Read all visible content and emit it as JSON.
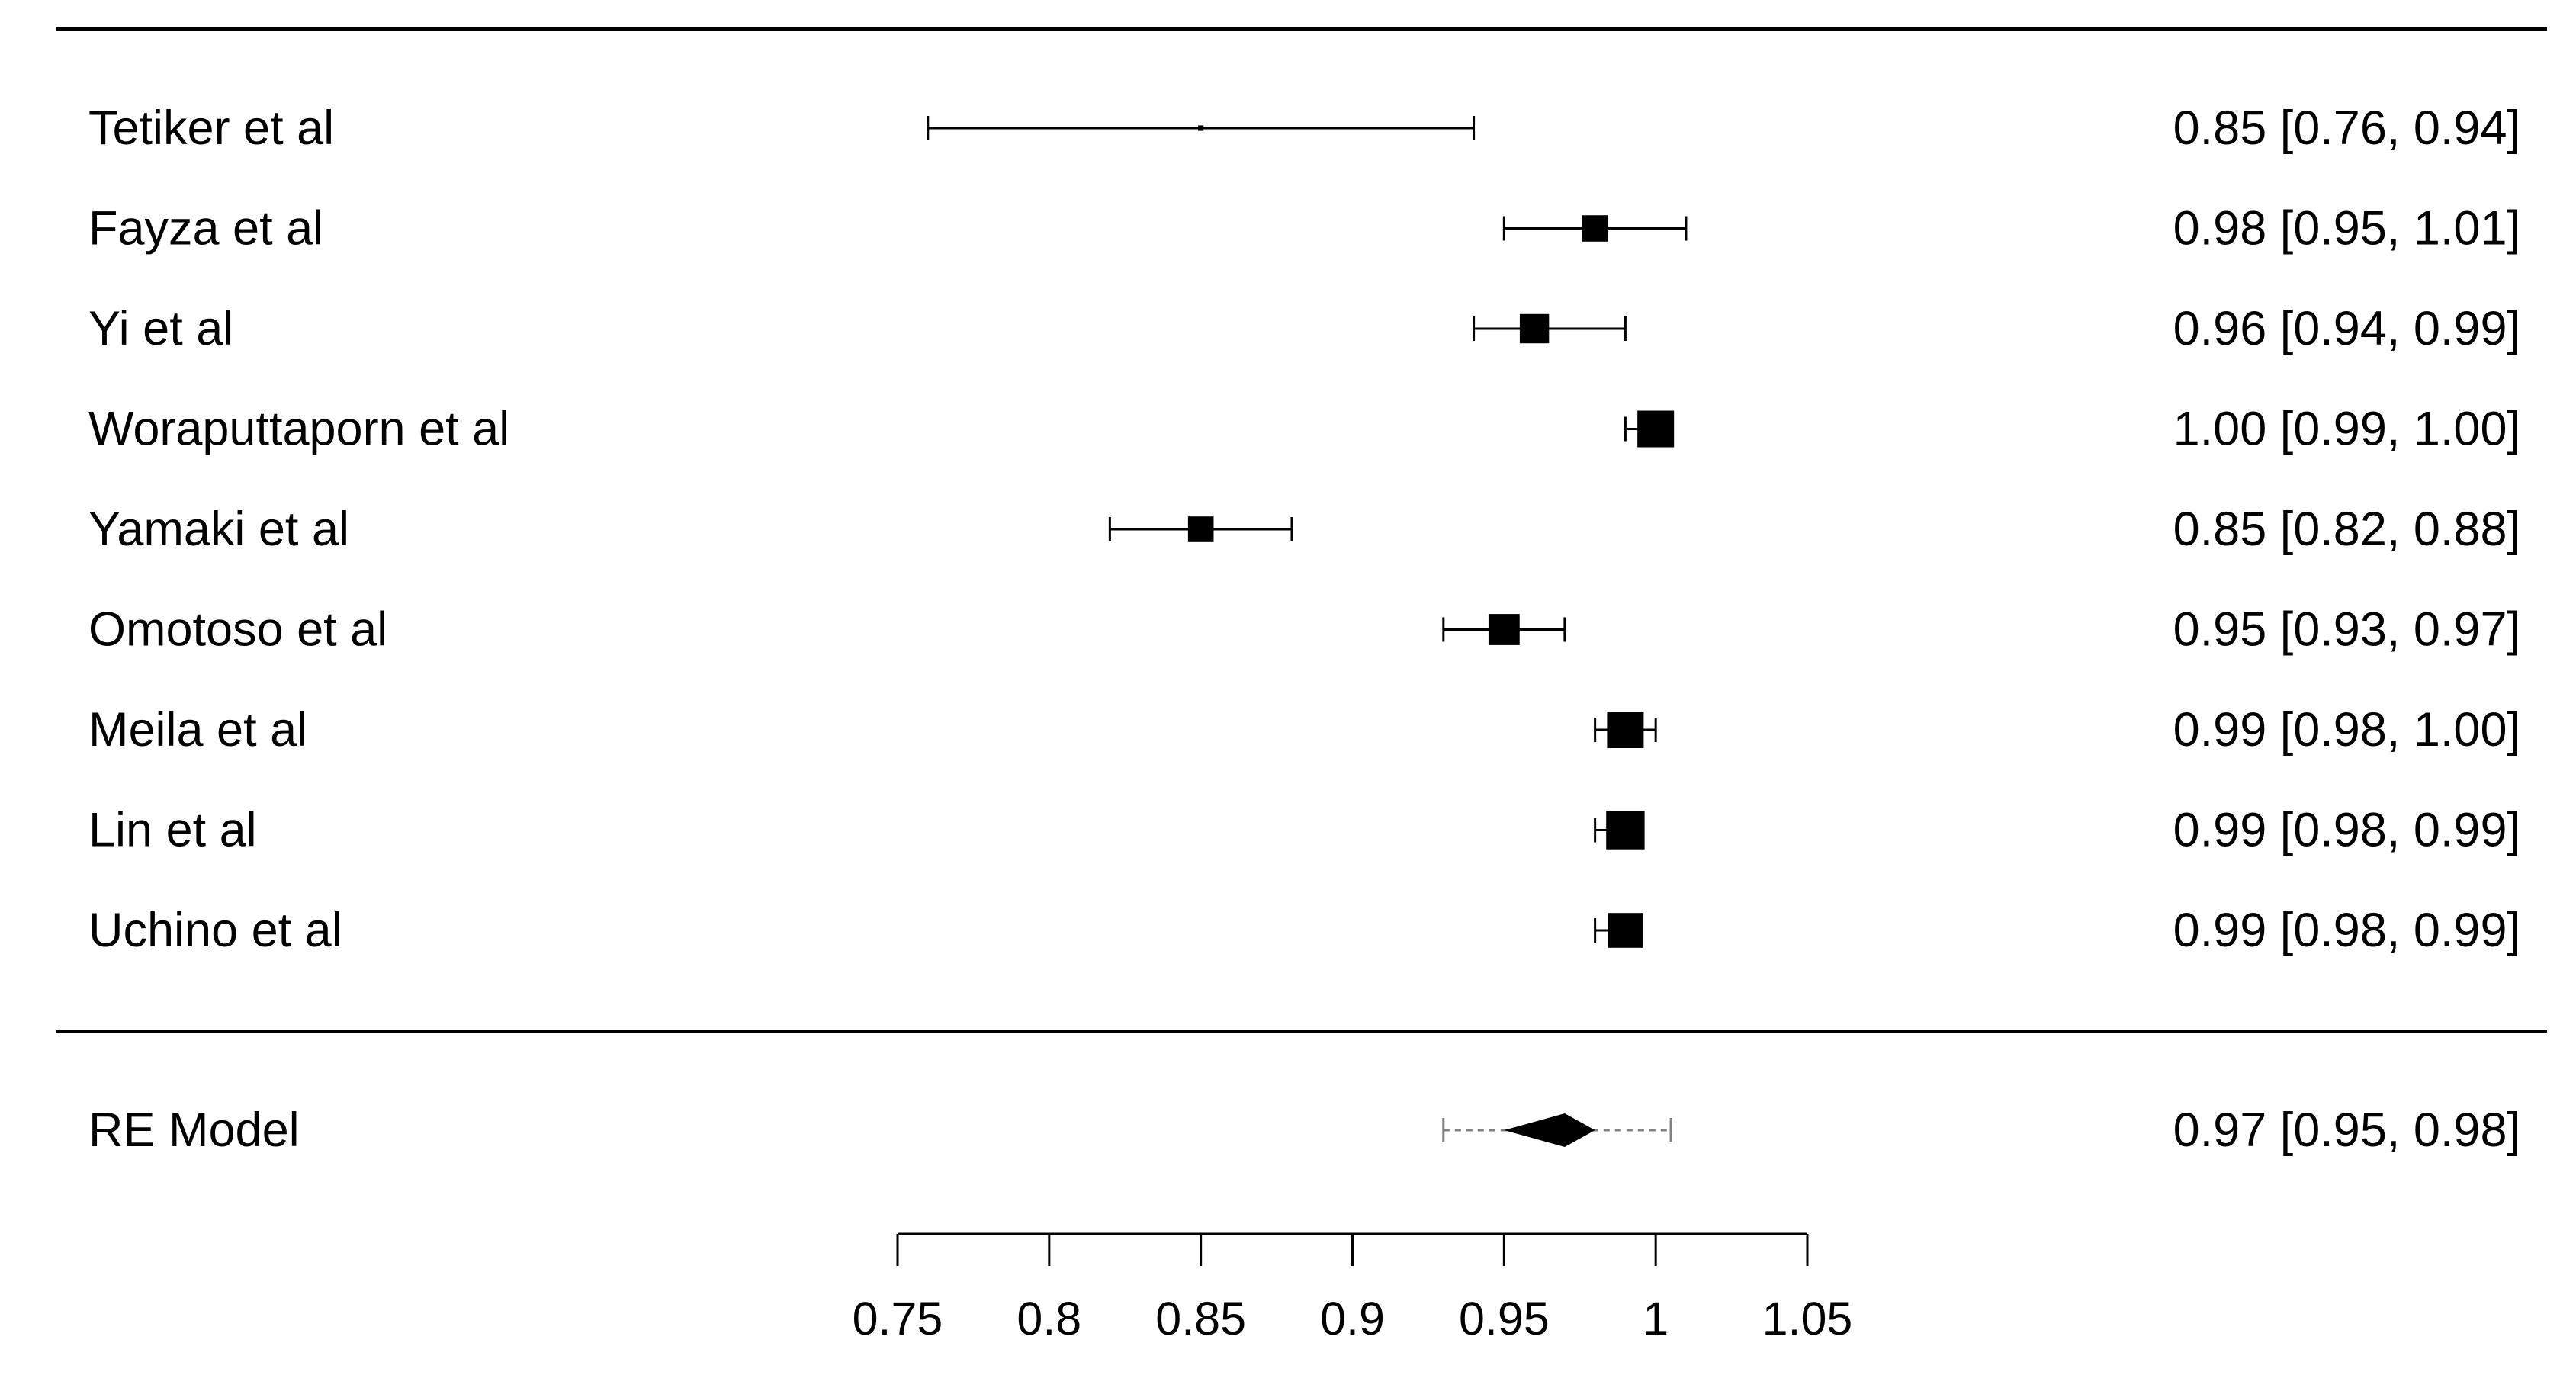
{
  "chart_data": {
    "type": "forest",
    "colors": {
      "ink": "#000000",
      "summary_ci": "#808080"
    },
    "x_axis": {
      "range": [
        0.75,
        1.05
      ],
      "ticks": [
        0.75,
        0.8,
        0.85,
        0.9,
        0.95,
        1.0,
        1.05
      ],
      "tick_labels": [
        "0.75",
        "0.8",
        "0.85",
        "0.9",
        "0.95",
        "1",
        "1.05"
      ]
    },
    "studies": [
      {
        "label": "Tetiker et al",
        "estimate": 0.85,
        "ci_low": 0.76,
        "ci_high": 0.94,
        "text": "0.85 [0.76, 0.94]",
        "weight": 0.15
      },
      {
        "label": "Fayza et al",
        "estimate": 0.98,
        "ci_low": 0.95,
        "ci_high": 1.01,
        "text": "0.98 [0.95, 1.01]",
        "weight": 0.72
      },
      {
        "label": "Yi et al",
        "estimate": 0.96,
        "ci_low": 0.94,
        "ci_high": 0.99,
        "text": "0.96 [0.94, 0.99]",
        "weight": 0.8
      },
      {
        "label": "Woraputtaporn et al",
        "estimate": 1.0,
        "ci_low": 0.99,
        "ci_high": 1.0,
        "text": "1.00 [0.99, 1.00]",
        "weight": 1.0
      },
      {
        "label": "Yamaki et al",
        "estimate": 0.85,
        "ci_low": 0.82,
        "ci_high": 0.88,
        "text": "0.85 [0.82, 0.88]",
        "weight": 0.7
      },
      {
        "label": "Omotoso et al",
        "estimate": 0.95,
        "ci_low": 0.93,
        "ci_high": 0.97,
        "text": "0.95 [0.93, 0.97]",
        "weight": 0.85
      },
      {
        "label": "Meila et al",
        "estimate": 0.99,
        "ci_low": 0.98,
        "ci_high": 1.0,
        "text": "0.99 [0.98, 1.00]",
        "weight": 1.0
      },
      {
        "label": "Lin et al",
        "estimate": 0.99,
        "ci_low": 0.98,
        "ci_high": 0.99,
        "text": "0.99 [0.98, 0.99]",
        "weight": 1.05
      },
      {
        "label": "Uchino et al",
        "estimate": 0.99,
        "ci_low": 0.98,
        "ci_high": 0.99,
        "text": "0.99 [0.98, 0.99]",
        "weight": 0.95
      }
    ],
    "summary": {
      "label": "RE Model",
      "estimate": 0.97,
      "ci_low": 0.95,
      "ci_high": 0.98,
      "pi_low": 0.93,
      "pi_high": 1.005,
      "text": "0.97 [0.95, 0.98]"
    }
  }
}
